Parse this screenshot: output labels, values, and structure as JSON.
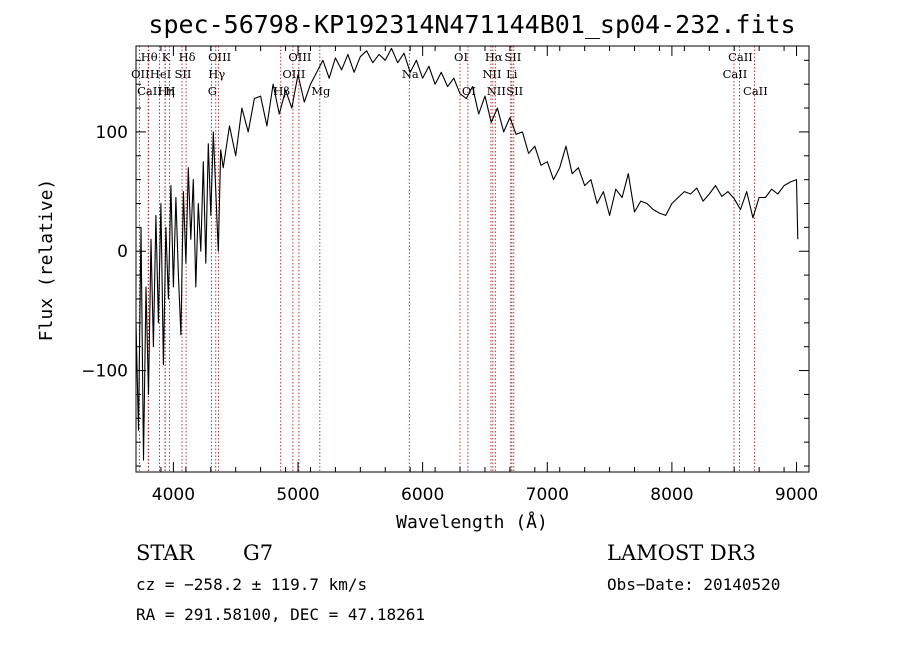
{
  "chart_data": {
    "type": "line",
    "title": "spec-56798-KP192314N471144B01_sp04-232.fits",
    "xlabel": "Wavelength (Å)",
    "ylabel": "Flux (relative)",
    "xlim": [
      3700,
      9100
    ],
    "ylim": [
      -185,
      172
    ],
    "x_ticks": [
      4000,
      5000,
      6000,
      7000,
      8000,
      9000
    ],
    "x_tick_labels": [
      "4000",
      "5000",
      "6000",
      "7000",
      "8000",
      "9000"
    ],
    "y_ticks": [
      -100,
      0,
      100
    ],
    "y_tick_labels": [
      "−100",
      "0",
      "100"
    ],
    "series": [
      {
        "name": "spectrum",
        "x": [
          3700,
          3720,
          3740,
          3760,
          3780,
          3800,
          3820,
          3840,
          3860,
          3880,
          3900,
          3920,
          3940,
          3960,
          3980,
          4000,
          4020,
          4040,
          4060,
          4080,
          4100,
          4120,
          4140,
          4160,
          4180,
          4200,
          4220,
          4240,
          4260,
          4280,
          4300,
          4320,
          4340,
          4360,
          4380,
          4400,
          4450,
          4500,
          4550,
          4600,
          4650,
          4700,
          4750,
          4800,
          4850,
          4900,
          4950,
          5000,
          5050,
          5100,
          5150,
          5200,
          5250,
          5300,
          5350,
          5400,
          5450,
          5500,
          5550,
          5600,
          5650,
          5700,
          5750,
          5800,
          5850,
          5900,
          5950,
          6000,
          6050,
          6100,
          6150,
          6200,
          6250,
          6300,
          6350,
          6400,
          6450,
          6500,
          6550,
          6600,
          6650,
          6700,
          6750,
          6800,
          6850,
          6900,
          6950,
          7000,
          7050,
          7100,
          7150,
          7200,
          7250,
          7300,
          7350,
          7400,
          7450,
          7500,
          7550,
          7600,
          7650,
          7700,
          7750,
          7800,
          7850,
          7900,
          7950,
          8000,
          8050,
          8100,
          8150,
          8200,
          8250,
          8300,
          8350,
          8400,
          8450,
          8500,
          8550,
          8600,
          8650,
          8700,
          8750,
          8800,
          8850,
          8900,
          8950,
          9000,
          9010
        ],
        "y": [
          -60,
          -150,
          20,
          -175,
          -30,
          -120,
          10,
          -80,
          30,
          -60,
          40,
          -95,
          20,
          -40,
          55,
          -30,
          45,
          -20,
          -70,
          50,
          -10,
          70,
          10,
          60,
          -30,
          40,
          0,
          75,
          -10,
          90,
          30,
          100,
          50,
          0,
          85,
          70,
          105,
          80,
          120,
          100,
          128,
          130,
          105,
          140,
          115,
          135,
          120,
          148,
          125,
          140,
          150,
          160,
          145,
          162,
          152,
          165,
          150,
          163,
          168,
          158,
          165,
          160,
          170,
          158,
          166,
          150,
          160,
          145,
          155,
          140,
          150,
          138,
          145,
          132,
          128,
          138,
          115,
          130,
          108,
          120,
          100,
          112,
          98,
          100,
          82,
          88,
          72,
          75,
          60,
          70,
          88,
          65,
          70,
          55,
          60,
          40,
          50,
          30,
          52,
          45,
          65,
          33,
          42,
          40,
          35,
          32,
          30,
          40,
          45,
          50,
          48,
          53,
          42,
          48,
          55,
          46,
          50,
          44,
          35,
          50,
          28,
          45,
          45,
          52,
          48,
          55,
          58,
          60,
          10
        ]
      }
    ],
    "line_markers": [
      {
        "name": "OII",
        "wavelength": 3727,
        "row": 2
      },
      {
        "name": "Hθ",
        "wavelength": 3798,
        "row": 1
      },
      {
        "name": "CaII",
        "wavelength": 3800,
        "row": 3
      },
      {
        "name": "HeI",
        "wavelength": 3889,
        "row": 2
      },
      {
        "name": "K",
        "wavelength": 3933,
        "row": 1
      },
      {
        "name": "Hη",
        "wavelength": 3935,
        "row": 3
      },
      {
        "name": "SII",
        "wavelength": 4069,
        "row": 2
      },
      {
        "name": "H",
        "wavelength": 3968,
        "row": 3
      },
      {
        "name": "Hδ",
        "wavelength": 4102,
        "row": 1
      },
      {
        "name": "OIII",
        "wavelength": 4363,
        "row": 1
      },
      {
        "name": "Hγ",
        "wavelength": 4340,
        "row": 2
      },
      {
        "name": "G",
        "wavelength": 4305,
        "row": 3
      },
      {
        "name": "Hβ",
        "wavelength": 4861,
        "row": 3
      },
      {
        "name": "OIII",
        "wavelength": 4959,
        "row": 2
      },
      {
        "name": "OIII",
        "wavelength": 5007,
        "row": 1
      },
      {
        "name": "Mg",
        "wavelength": 5175,
        "row": 3
      },
      {
        "name": "Na",
        "wavelength": 5893,
        "row": 2
      },
      {
        "name": "OI",
        "wavelength": 6300,
        "row": 1
      },
      {
        "name": "OI",
        "wavelength": 6363,
        "row": 3
      },
      {
        "name": "Hα",
        "wavelength": 6563,
        "row": 1
      },
      {
        "name": "NII",
        "wavelength": 6548,
        "row": 2
      },
      {
        "name": "NII",
        "wavelength": 6583,
        "row": 3
      },
      {
        "name": "SII",
        "wavelength": 6716,
        "row": 1
      },
      {
        "name": "Li",
        "wavelength": 6707,
        "row": 2
      },
      {
        "name": "SII",
        "wavelength": 6731,
        "row": 3
      },
      {
        "name": "CaII",
        "wavelength": 8542,
        "row": 1
      },
      {
        "name": "CaII",
        "wavelength": 8498,
        "row": 2
      },
      {
        "name": "CaII",
        "wavelength": 8662,
        "row": 3
      }
    ]
  },
  "info": {
    "object_class": "STAR",
    "subclass": "G7",
    "survey": "LAMOST DR3",
    "redshift_line": "cz = −258.2 ± 119.7 km/s",
    "obs_date_line": "Obs−Date: 20140520",
    "coords_line": "RA = 291.58100, DEC =  47.18261"
  }
}
